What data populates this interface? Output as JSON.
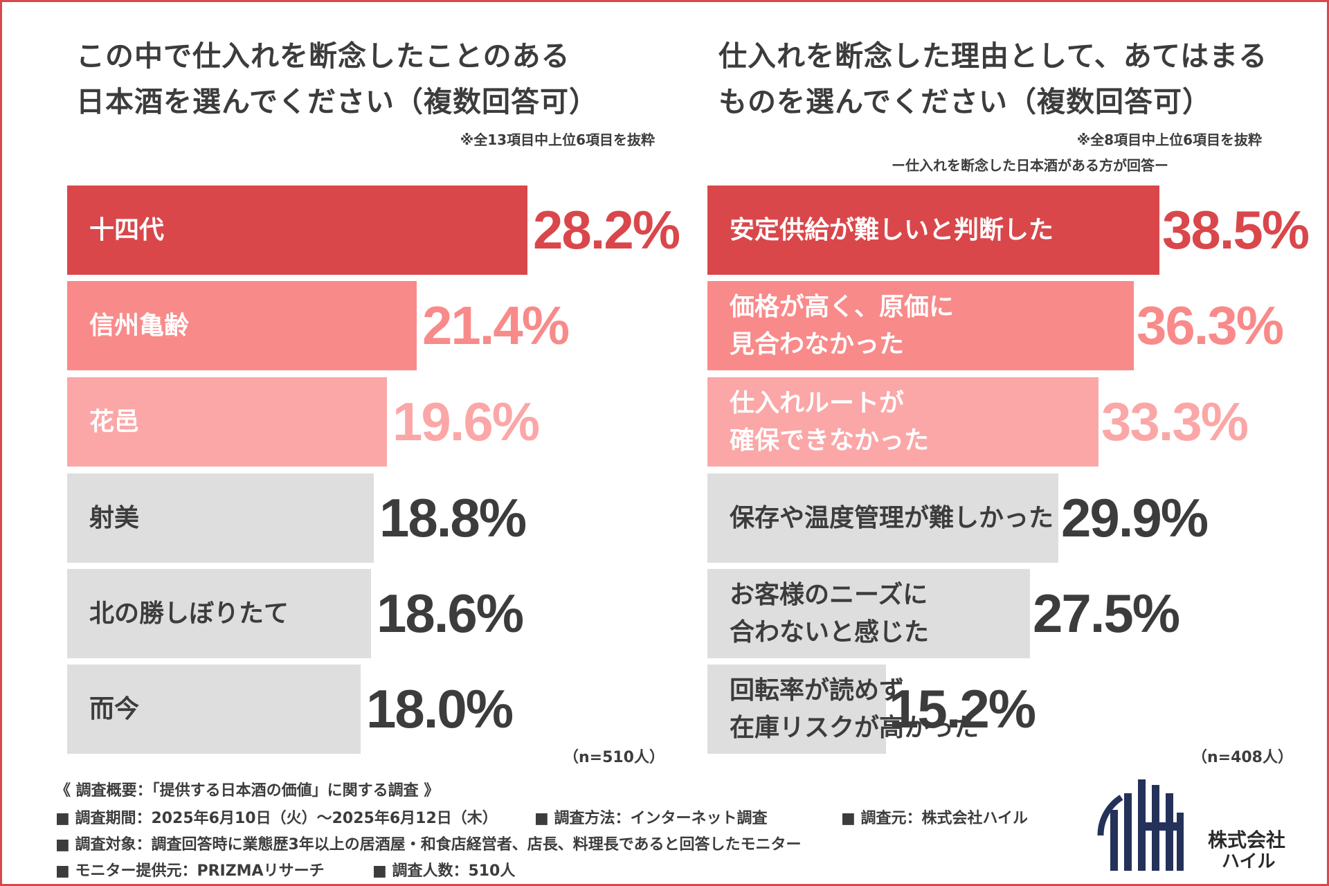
{
  "colors": {
    "frame": "#d9474b",
    "top": "#d9474b",
    "second": "#f98a8a",
    "third": "#fba7a7",
    "grey": "#dedede",
    "text_dark": "#3c3c3c",
    "logo_navy": "#24325a"
  },
  "chart_data": [
    {
      "type": "bar",
      "orientation": "horizontal",
      "title_lines": [
        "この中で仕入れを断念したことのある",
        "日本酒を選んでください（複数回答可）"
      ],
      "note": "※全13項目中上位6項目を抜粋",
      "subnote": "",
      "unit": "%",
      "categories": [
        [
          "十四代"
        ],
        [
          "信州亀齢"
        ],
        [
          "花邑"
        ],
        [
          "射美"
        ],
        [
          "北の勝しぼりたて"
        ],
        [
          "而今"
        ]
      ],
      "values": [
        28.2,
        21.4,
        19.6,
        18.8,
        18.6,
        18.0
      ],
      "value_labels": [
        "28.2%",
        "21.4%",
        "19.6%",
        "18.8%",
        "18.6%",
        "18.0%"
      ],
      "xlim": [
        0,
        28.2
      ],
      "n_label": "（n=510人）"
    },
    {
      "type": "bar",
      "orientation": "horizontal",
      "title_lines": [
        "仕入れを断念した理由として、あてはまる",
        "ものを選んでください（複数回答可）"
      ],
      "note": "※全8項目中上位6項目を抜粋",
      "subnote": "ー仕入れを断念した日本酒がある方が回答ー",
      "unit": "%",
      "categories": [
        [
          "安定供給が難しいと判断した"
        ],
        [
          "価格が高く、原価に",
          "見合わなかった"
        ],
        [
          "仕入れルートが",
          "確保できなかった"
        ],
        [
          "保存や温度管理が難しかった"
        ],
        [
          "お客様のニーズに",
          "合わないと感じた"
        ],
        [
          "回転率が読めず",
          "在庫リスクが高かった"
        ]
      ],
      "values": [
        38.5,
        36.3,
        33.3,
        29.9,
        27.5,
        15.2
      ],
      "value_labels": [
        "38.5%",
        "36.3%",
        "33.3%",
        "29.9%",
        "27.5%",
        "15.2%"
      ],
      "xlim": [
        0,
        38.5
      ],
      "n_label": "（n=408人）"
    }
  ],
  "footer": {
    "survey_title": "《 調査概要：「提供する日本酒の価値」に関する調査 》",
    "period": "■ 調査期間：2025年6月10日（火）〜2025年6月12日（木）",
    "method": "■ 調査方法：インターネット調査",
    "source": "■ 調査元：株式会社ハイル",
    "target": "■ 調査対象：調査回答時に業態歴3年以上の居酒屋・和食店経営者、店長、料理長であると回答したモニター",
    "provider": "■ モニター提供元：PRIZMAリサーチ",
    "count": "■ 調査人数：510人"
  },
  "logo": {
    "line1": "株式会社",
    "line2": "ハイル"
  }
}
